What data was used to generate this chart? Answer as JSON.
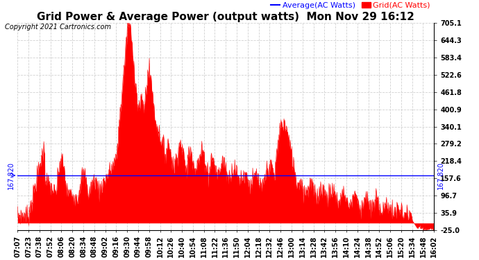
{
  "title": "Grid Power & Average Power (output watts)  Mon Nov 29 16:12",
  "copyright": "Copyright 2021 Cartronics.com",
  "legend_avg": "Average(AC Watts)",
  "legend_grid": "Grid(AC Watts)",
  "avg_value": 167.82,
  "ylim": [
    -25.0,
    705.1
  ],
  "yticks": [
    -25.0,
    35.9,
    96.7,
    157.6,
    218.4,
    279.2,
    340.1,
    400.9,
    461.8,
    522.6,
    583.4,
    644.3,
    705.1
  ],
  "xtick_labels": [
    "07:07",
    "07:23",
    "07:38",
    "07:52",
    "08:06",
    "08:20",
    "08:34",
    "08:48",
    "09:02",
    "09:16",
    "09:30",
    "09:44",
    "09:58",
    "10:12",
    "10:26",
    "10:40",
    "10:54",
    "11:08",
    "11:22",
    "11:36",
    "11:50",
    "12:04",
    "12:18",
    "12:32",
    "12:46",
    "13:00",
    "13:14",
    "13:28",
    "13:42",
    "13:56",
    "14:10",
    "14:24",
    "14:38",
    "14:52",
    "15:06",
    "15:20",
    "15:34",
    "15:48",
    "16:02"
  ],
  "grid_color": "#cccccc",
  "fill_color": "#ff0000",
  "line_color": "#ff0000",
  "avg_line_color": "#0000ff",
  "avg_label_color": "#0000ff",
  "grid_label_color": "#ff0000",
  "title_color": "#000000",
  "background_color": "#ffffff",
  "title_fontsize": 11,
  "tick_fontsize": 7,
  "copyright_fontsize": 7,
  "legend_fontsize": 8,
  "avg_fontsize": 7
}
